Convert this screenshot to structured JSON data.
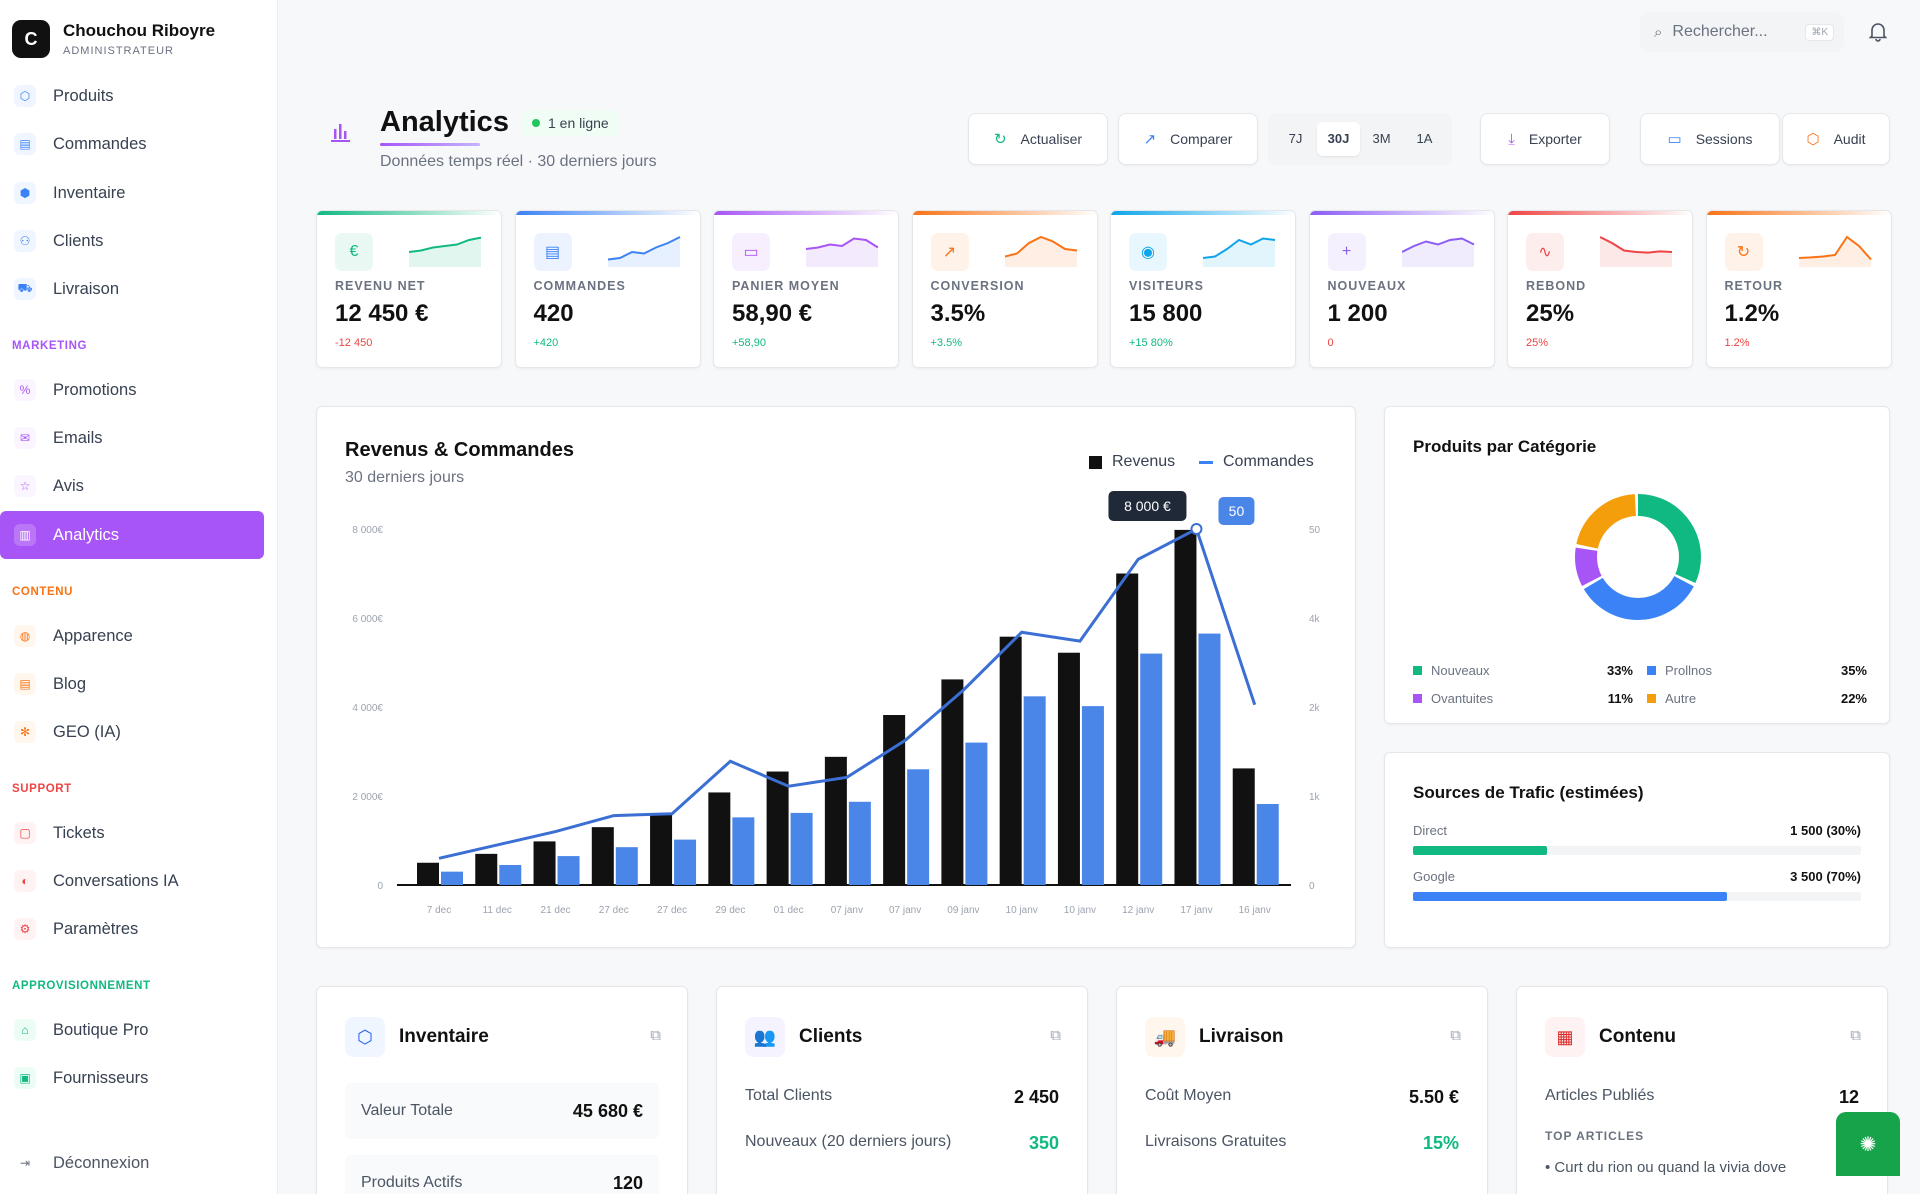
{
  "brand": {
    "logo_letter": "C",
    "name": "Chouchou Riboyre",
    "role": "ADMINISTRATEUR"
  },
  "nav": {
    "items1": [
      {
        "label": "Produits",
        "icon": "box-icon"
      },
      {
        "label": "Commandes",
        "icon": "orders-icon"
      },
      {
        "label": "Inventaire",
        "icon": "cube-icon"
      },
      {
        "label": "Clients",
        "icon": "users-icon"
      },
      {
        "label": "Livraison",
        "icon": "truck-icon"
      }
    ],
    "marketing_title": "MARKETING",
    "marketing": [
      {
        "label": "Promotions",
        "icon": "percent-icon"
      },
      {
        "label": "Emails",
        "icon": "mail-icon"
      },
      {
        "label": "Avis",
        "icon": "star-icon"
      },
      {
        "label": "Analytics",
        "icon": "chart-icon"
      }
    ],
    "contenu_title": "CONTENU",
    "contenu": [
      {
        "label": "Apparence",
        "icon": "palette-icon"
      },
      {
        "label": "Blog",
        "icon": "doc-icon"
      },
      {
        "label": "GEO (IA)",
        "icon": "sparkle-icon"
      }
    ],
    "support_title": "SUPPORT",
    "support": [
      {
        "label": "Tickets",
        "icon": "ticket-icon"
      },
      {
        "label": "Conversations IA",
        "icon": "chat-icon"
      },
      {
        "label": "Paramètres",
        "icon": "gear-icon"
      }
    ],
    "appro_title": "APPROVISIONNEMENT",
    "appro": [
      {
        "label": "Boutique Pro",
        "icon": "shop-icon"
      },
      {
        "label": "Fournisseurs",
        "icon": "supplier-icon"
      }
    ],
    "logout": "Déconnexion"
  },
  "search": {
    "placeholder": "Rechercher...",
    "shortcut": "⌘K"
  },
  "header": {
    "title": "Analytics",
    "status": "1 en ligne",
    "subtitle": "Données temps réel · 30 derniers jours"
  },
  "toolbar": {
    "refresh": "Actualiser",
    "compare": "Comparer",
    "ranges": [
      "7J",
      "30J",
      "3M",
      "1A"
    ],
    "selected_range": "30J",
    "export": "Exporter",
    "sessions": "Sessions",
    "audit": "Audit"
  },
  "kpis": [
    {
      "label": "REVENU NET",
      "value": "12 450 €",
      "delta": "-12 450",
      "color": "#10b981",
      "delta_color": "#ef4444",
      "icon": "€"
    },
    {
      "label": "COMMANDES",
      "value": "420",
      "delta": "+420",
      "color": "#3b82f6",
      "delta_color": "#10b981",
      "icon": "▤"
    },
    {
      "label": "PANIER MOYEN",
      "value": "58,90 €",
      "delta": "+58,90",
      "color": "#a855f7",
      "delta_color": "#10b981",
      "icon": "▭"
    },
    {
      "label": "CONVERSION",
      "value": "3.5%",
      "delta": "+3.5%",
      "color": "#f97316",
      "delta_color": "#10b981",
      "icon": "↗"
    },
    {
      "label": "VISITEURS",
      "value": "15 800",
      "delta": "+15 80%",
      "color": "#0ea5e9",
      "delta_color": "#10b981",
      "icon": "◉"
    },
    {
      "label": "NOUVEAUX",
      "value": "1 200",
      "delta": "0",
      "color": "#8b5cf6",
      "delta_color": "#ef4444",
      "icon": "+"
    },
    {
      "label": "REBOND",
      "value": "25%",
      "delta": "25%",
      "color": "#ef4444",
      "delta_color": "#ef4444",
      "icon": "∿"
    },
    {
      "label": "RETOUR",
      "value": "1.2%",
      "delta": "1.2%",
      "color": "#f97316",
      "delta_color": "#ef4444",
      "icon": "↻"
    }
  ],
  "main_chart": {
    "title": "Revenus & Commandes",
    "subtitle": "30 derniers jours",
    "legend_revenue": "Revenus",
    "legend_orders": "Commandes",
    "tooltip_revenue": "8 000 €",
    "tooltip_orders": "50"
  },
  "chart_data": {
    "type": "bar",
    "categories": [
      "7 dec",
      "11 dec",
      "21 dec",
      "27 dec",
      "27 dec",
      "29 dec",
      "01 dec",
      "07 janv",
      "07 janv",
      "09 janv",
      "10 janv",
      "10 janv",
      "12 janv",
      "17 janv",
      "16 janv"
    ],
    "y_ticks": [
      "0",
      "2 000€",
      "4 000€",
      "6 000€",
      "8 000€"
    ],
    "y2_ticks": [
      "0",
      "1k",
      "2k",
      "4k",
      "50"
    ],
    "ylim": [
      0,
      8000
    ],
    "series": [
      {
        "name": "Revenus",
        "type": "bar",
        "color": "#111111",
        "values": [
          500,
          700,
          980,
          1300,
          1580,
          2080,
          2550,
          2880,
          3820,
          4620,
          5580,
          5220,
          7000,
          7980,
          2620
        ]
      },
      {
        "name": "Revenus",
        "type": "bar",
        "color": "#4a86e8",
        "values": [
          300,
          450,
          650,
          850,
          1020,
          1520,
          1620,
          1870,
          2600,
          3200,
          4240,
          4020,
          5200,
          5650,
          1820
        ]
      },
      {
        "name": "Commandes",
        "type": "line",
        "color": "#3b6fd4",
        "values": [
          600,
          900,
          1200,
          1560,
          1600,
          2780,
          2220,
          2420,
          3250,
          4380,
          5680,
          5480,
          7320,
          8000,
          4050
        ]
      }
    ]
  },
  "category_chart": {
    "title": "Produits par Catégorie"
  },
  "donut_data": {
    "type": "pie",
    "slices": [
      {
        "name": "Nouveaux",
        "value": 33,
        "color": "#10b981",
        "label": "33%"
      },
      {
        "name": "Prollnos",
        "value": 35,
        "color": "#3b82f6",
        "label": "35%"
      },
      {
        "name": "Ovantuites",
        "value": 11,
        "color": "#a855f7",
        "label": "11%"
      },
      {
        "name": "Autre",
        "value": 22,
        "color": "#f59e0b",
        "label": "22%"
      }
    ]
  },
  "traffic": {
    "title": "Sources de Trafic (estimées)",
    "rows": [
      {
        "name": "Direct",
        "value": "1 500 (30%)",
        "pct": 30,
        "color": "#10b981"
      },
      {
        "name": "Google",
        "value": "3 500 (70%)",
        "pct": 70,
        "color": "#3b82f6"
      }
    ]
  },
  "bottom": [
    {
      "title": "Inventaire",
      "icon": "⬡",
      "icon_color": "#2563eb",
      "icon_bg": "#eff6ff",
      "rows": [
        {
          "label": "Valeur Totale",
          "value": "45 680 €"
        },
        {
          "label": "Produits Actifs",
          "value": "120"
        }
      ]
    },
    {
      "title": "Clients",
      "icon": "👥",
      "icon_color": "#7c3aed",
      "icon_bg": "#f5f3ff",
      "rows": [
        {
          "label": "Total Clients",
          "value": "2 450"
        },
        {
          "label": "Nouveaux (20 derniers jours)",
          "value": "350"
        }
      ]
    },
    {
      "title": "Livraison",
      "icon": "🚚",
      "icon_color": "#ea580c",
      "icon_bg": "#fff7ed",
      "rows": [
        {
          "label": "Coût Moyen",
          "value": "5.50 €"
        },
        {
          "label": "Livraisons Gratuites",
          "value": "15%"
        }
      ]
    },
    {
      "title": "Contenu",
      "icon": "▦",
      "icon_color": "#dc2626",
      "icon_bg": "#fef2f2",
      "rows": [
        {
          "label": "Articles Publiés",
          "value": "12"
        }
      ],
      "section": "TOP ARTICLES",
      "article": "• Curt du rion ou quand la vivia dove"
    }
  ]
}
